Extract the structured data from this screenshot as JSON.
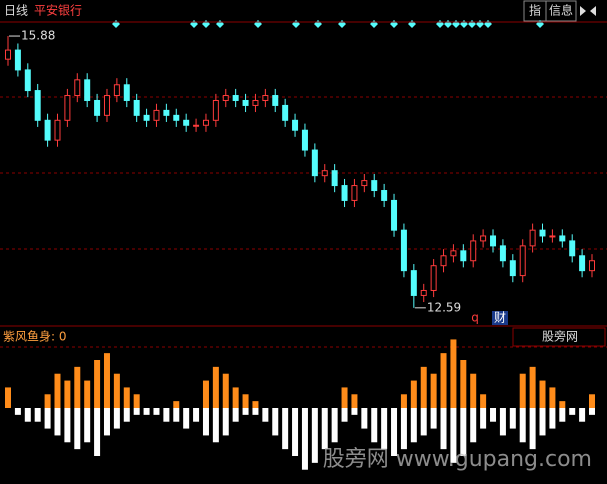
{
  "header": {
    "period": "日线",
    "stock": "平安银行",
    "btn_index": "指",
    "btn_info": "信息"
  },
  "chart_data": {
    "type": "candlestick",
    "open": [
      15.6,
      15.71,
      15.47,
      15.22,
      14.86,
      14.62,
      14.86,
      15.16,
      15.35,
      15.1,
      14.92,
      15.16,
      15.29,
      15.1,
      14.92,
      14.86,
      14.98,
      14.92,
      14.86,
      14.8,
      14.8,
      14.86,
      15.1,
      15.16,
      15.1,
      15.04,
      15.1,
      15.16,
      15.04,
      14.86,
      14.74,
      14.5,
      14.19,
      14.25,
      14.07,
      13.89,
      14.07,
      14.13,
      14.01,
      13.89,
      13.53,
      13.04,
      12.74,
      12.8,
      13.1,
      13.22,
      13.28,
      13.16,
      13.4,
      13.46,
      13.34,
      13.16,
      12.98,
      13.34,
      13.53,
      13.46,
      13.46,
      13.4,
      13.22,
      13.04
    ],
    "high": [
      15.88,
      15.79,
      15.55,
      15.3,
      14.94,
      14.94,
      15.24,
      15.43,
      15.43,
      15.18,
      15.24,
      15.37,
      15.37,
      15.18,
      15.0,
      15.06,
      15.06,
      15.0,
      14.94,
      14.88,
      14.94,
      15.18,
      15.24,
      15.24,
      15.18,
      15.18,
      15.24,
      15.24,
      15.12,
      14.94,
      14.82,
      14.58,
      14.33,
      14.33,
      14.15,
      14.15,
      14.21,
      14.21,
      14.09,
      13.97,
      13.61,
      13.12,
      12.88,
      13.18,
      13.3,
      13.36,
      13.36,
      13.48,
      13.54,
      13.54,
      13.42,
      13.24,
      13.42,
      13.61,
      13.61,
      13.54,
      13.54,
      13.48,
      13.3,
      13.24
    ],
    "low": [
      15.52,
      15.39,
      15.14,
      14.78,
      14.54,
      14.54,
      14.78,
      15.08,
      15.02,
      14.84,
      14.84,
      15.08,
      15.02,
      14.84,
      14.78,
      14.78,
      14.84,
      14.78,
      14.72,
      14.72,
      14.72,
      14.78,
      15.02,
      15.02,
      14.96,
      14.96,
      15.02,
      14.96,
      14.78,
      14.66,
      14.42,
      14.11,
      14.11,
      13.99,
      13.81,
      13.81,
      13.99,
      13.93,
      13.81,
      13.45,
      12.96,
      12.59,
      12.66,
      12.72,
      13.02,
      13.14,
      13.08,
      13.08,
      13.32,
      13.26,
      13.08,
      12.9,
      12.9,
      13.26,
      13.38,
      13.38,
      13.32,
      13.14,
      12.96,
      12.96
    ],
    "close": [
      15.71,
      15.47,
      15.22,
      14.86,
      14.62,
      14.86,
      15.16,
      15.35,
      15.1,
      14.92,
      15.16,
      15.29,
      15.1,
      14.92,
      14.86,
      14.98,
      14.92,
      14.86,
      14.8,
      14.8,
      14.86,
      15.1,
      15.16,
      15.1,
      15.04,
      15.1,
      15.16,
      15.04,
      14.86,
      14.74,
      14.5,
      14.19,
      14.25,
      14.07,
      13.89,
      14.07,
      14.13,
      14.01,
      13.89,
      13.53,
      13.04,
      12.74,
      12.8,
      13.1,
      13.22,
      13.28,
      13.16,
      13.4,
      13.46,
      13.34,
      13.16,
      12.98,
      13.34,
      13.53,
      13.46,
      13.46,
      13.4,
      13.22,
      13.04,
      13.16
    ],
    "ylim": [
      12.37,
      16.05
    ],
    "up_color": "#ff3c3c",
    "down_color": "#54fcfc",
    "tag_q": "q",
    "tag_cai": "财"
  },
  "indicator": {
    "type": "bar",
    "label": "紫风鱼身: 0",
    "source": "股旁网",
    "up_values": [
      3,
      0,
      0,
      0,
      2,
      5,
      4,
      6,
      4,
      7,
      8,
      5,
      3,
      2,
      0,
      0,
      0,
      1,
      0,
      0,
      4,
      6,
      5,
      3,
      2,
      1,
      0,
      0,
      0,
      0,
      0,
      0,
      0,
      0,
      3,
      2,
      0,
      0,
      0,
      0,
      2,
      4,
      6,
      5,
      8,
      10,
      7,
      5,
      2,
      0,
      0,
      0,
      5,
      6,
      4,
      3,
      1,
      0,
      0,
      2
    ],
    "down_values": [
      0,
      -1,
      -2,
      -2,
      -3,
      -4,
      -5,
      -6,
      -5,
      -7,
      -4,
      -3,
      -2,
      -1,
      -1,
      -1,
      -2,
      -2,
      -3,
      -2,
      -4,
      -5,
      -4,
      -2,
      -1,
      -1,
      -2,
      -4,
      -6,
      -7,
      -9,
      -8,
      -6,
      -5,
      -2,
      -1,
      -3,
      -5,
      -6,
      -7,
      -6,
      -5,
      -4,
      -3,
      -6,
      -8,
      -7,
      -5,
      -3,
      -2,
      -4,
      -3,
      -5,
      -6,
      -4,
      -3,
      -2,
      -1,
      -2,
      -1
    ],
    "ylim": [
      -10.5,
      10.5
    ],
    "up_color": "#ff8c1a",
    "down_color": "#ffffff"
  },
  "watermark": "股旁网 www.gupang.com"
}
